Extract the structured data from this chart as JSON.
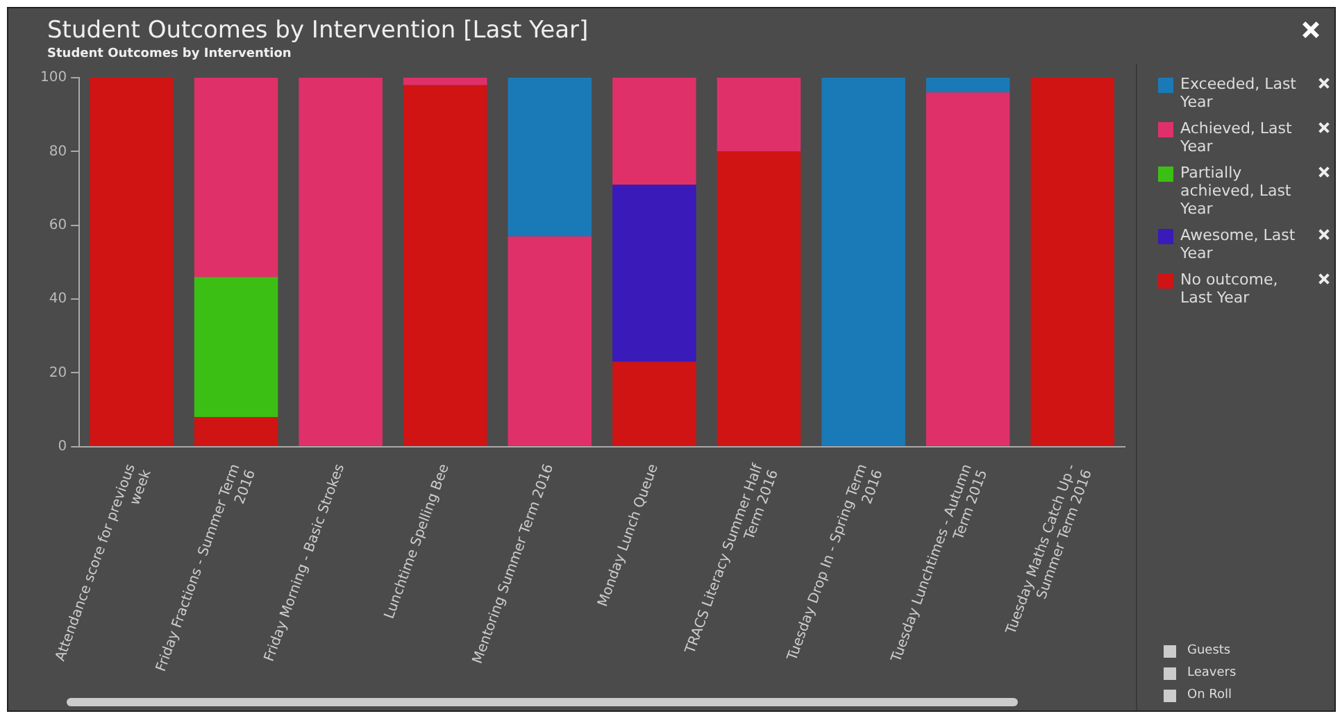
{
  "chart_data": {
    "type": "bar",
    "title": "Student Outcomes by Intervention [Last Year]",
    "subtitle": "Student Outcomes by Intervention",
    "categories": [
      "Attendance score for previous week",
      "Friday Fractions - Summer Term 2016",
      "Friday Morning - Basic Strokes",
      "Lunchtime Spelling Bee",
      "Mentoring Summer Term 2016",
      "Monday Lunch Queue",
      "TRACS Literacy Summer Half Term 2016",
      "Tuesday Drop In - Spring Term 2016",
      "Tuesday Lunchtimes - Autumn Term 2015",
      "Tuesday Maths Catch Up - Summer Term 2016"
    ],
    "stacked": true,
    "series": [
      {
        "name": "No outcome, Last Year",
        "color": "#d01414",
        "values": [
          100,
          8,
          null,
          98,
          null,
          23,
          80,
          null,
          null,
          100
        ]
      },
      {
        "name": "Awesome, Last Year",
        "color": "#3a1ab8",
        "values": [
          null,
          null,
          null,
          null,
          null,
          48,
          null,
          null,
          null,
          null
        ]
      },
      {
        "name": "Partially achieved, Last Year",
        "color": "#3cbf14",
        "values": [
          null,
          38,
          null,
          null,
          null,
          null,
          null,
          null,
          null,
          null
        ]
      },
      {
        "name": "Achieved, Last Year",
        "color": "#e0306a",
        "values": [
          null,
          54,
          100,
          2,
          57,
          29,
          20,
          null,
          96,
          null
        ]
      },
      {
        "name": "Exceeded, Last Year",
        "color": "#1a7ab8",
        "values": [
          null,
          null,
          null,
          null,
          43,
          null,
          null,
          100,
          4,
          null
        ]
      }
    ],
    "ylim": [
      0,
      100
    ],
    "yticks": [
      0,
      20,
      40,
      60,
      80,
      100
    ],
    "grid": false,
    "legend": "right",
    "annotations": [
      "Guests",
      "Leavers",
      "On Roll"
    ]
  }
}
